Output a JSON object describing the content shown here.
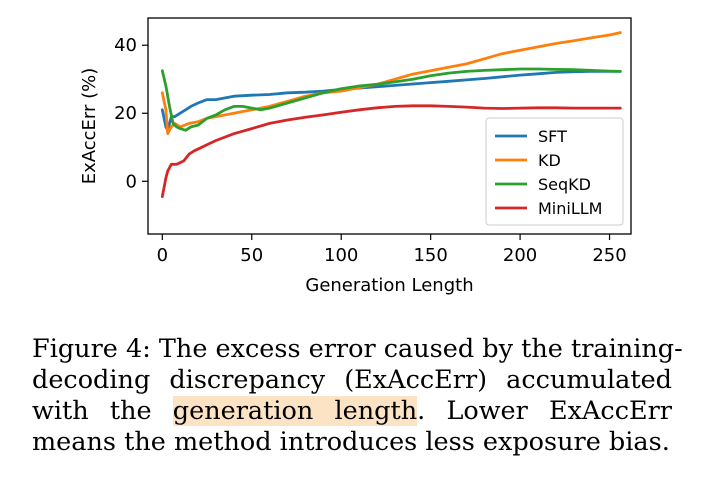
{
  "chart_data": {
    "type": "line",
    "title": "",
    "xlabel": "Generation Length",
    "ylabel": "ExAccErr (%)",
    "xlim": [
      -8,
      262
    ],
    "ylim": [
      -15.5,
      48
    ],
    "xticks": [
      0,
      50,
      100,
      150,
      200,
      250
    ],
    "yticks": [
      0,
      20,
      40
    ],
    "xtick_labels": [
      "0",
      "50",
      "100",
      "150",
      "200",
      "250"
    ],
    "ytick_labels": [
      "0",
      "20",
      "40"
    ],
    "grid": false,
    "legend_position": "lower-right",
    "series": [
      {
        "name": "SFT",
        "color": "#1f77b4",
        "x": [
          0,
          2,
          3,
          5,
          7,
          10,
          13,
          16,
          20,
          25,
          30,
          40,
          50,
          60,
          70,
          80,
          90,
          100,
          110,
          120,
          130,
          140,
          150,
          160,
          170,
          180,
          190,
          200,
          210,
          220,
          230,
          240,
          250,
          256
        ],
        "y": [
          21,
          16,
          15,
          19,
          19,
          20,
          21,
          22,
          23,
          24,
          24,
          25,
          25.3,
          25.5,
          26,
          26.2,
          26.5,
          27,
          27.4,
          27.8,
          28.2,
          28.6,
          29,
          29.4,
          29.8,
          30.2,
          30.7,
          31.2,
          31.6,
          32,
          32.2,
          32.3,
          32.3,
          32.3
        ]
      },
      {
        "name": "KD",
        "color": "#ff7f0e",
        "x": [
          0,
          2,
          3,
          5,
          7,
          10,
          15,
          20,
          25,
          30,
          40,
          50,
          60,
          70,
          80,
          90,
          100,
          110,
          120,
          130,
          140,
          150,
          160,
          170,
          180,
          190,
          200,
          210,
          220,
          230,
          240,
          250,
          256
        ],
        "y": [
          26,
          21,
          14,
          16,
          17,
          16,
          17,
          17.5,
          18.5,
          19,
          20,
          21,
          22,
          23.5,
          25,
          26,
          26.5,
          27.5,
          28.5,
          30,
          31.5,
          32.5,
          33.5,
          34.5,
          36,
          37.5,
          38.5,
          39.5,
          40.5,
          41.3,
          42.2,
          43,
          43.7
        ]
      },
      {
        "name": "SeqKD",
        "color": "#2ca02c",
        "x": [
          0,
          2,
          4,
          6,
          8,
          10,
          13,
          16,
          20,
          25,
          30,
          35,
          40,
          45,
          50,
          55,
          60,
          70,
          80,
          90,
          100,
          110,
          120,
          130,
          140,
          150,
          160,
          170,
          180,
          190,
          200,
          210,
          220,
          230,
          240,
          250,
          256
        ],
        "y": [
          32.5,
          28,
          22,
          17,
          16,
          15.5,
          15,
          16,
          16.5,
          18.5,
          19.5,
          21,
          22,
          22,
          21.5,
          21,
          21.5,
          23,
          24.5,
          26,
          27.2,
          28,
          28.5,
          29.2,
          30,
          31,
          31.8,
          32.3,
          32.6,
          32.8,
          33,
          33,
          32.9,
          32.8,
          32.6,
          32.4,
          32.3
        ]
      },
      {
        "name": "MiniLLM",
        "color": "#d62728",
        "x": [
          0,
          2,
          3,
          5,
          8,
          12,
          15,
          18,
          22,
          26,
          30,
          40,
          50,
          60,
          70,
          80,
          90,
          100,
          110,
          120,
          130,
          140,
          150,
          160,
          170,
          180,
          190,
          200,
          210,
          220,
          230,
          240,
          250,
          256
        ],
        "y": [
          -4.5,
          1,
          3,
          5,
          5,
          6,
          8,
          9,
          10,
          11,
          12,
          14,
          15.5,
          17,
          18,
          18.8,
          19.5,
          20.3,
          21,
          21.6,
          22,
          22.2,
          22.2,
          22,
          21.8,
          21.5,
          21.4,
          21.5,
          21.6,
          21.6,
          21.5,
          21.5,
          21.5,
          21.5
        ]
      }
    ]
  },
  "caption": {
    "line1": "Figure 4: The excess error caused by the training-",
    "line2": "decoding discrepancy (ExAccErr) accumulated",
    "line3_pre": "with the ",
    "line3_hl": "generation length",
    "line3_post": ".  Lower ExAccErr",
    "line4": "means the method introduces less exposure bias."
  }
}
